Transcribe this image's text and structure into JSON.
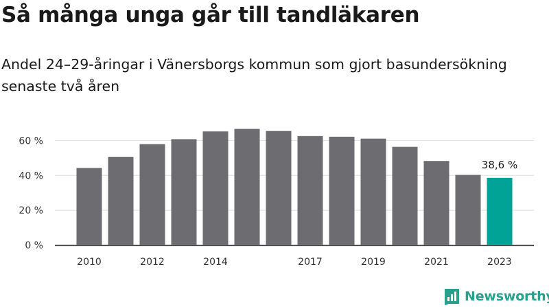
{
  "title": "Så många unga går till tandläkaren",
  "subtitle": "Andel 24–29-åringar i Vänersborgs kommun som gjort basundersökning senaste två åren",
  "brand": {
    "name": "Newsworthy",
    "color": "#27a08c",
    "icon": "bar-chart-logo-icon"
  },
  "colors": {
    "bar": "#6d6d71",
    "highlight": "#00a396",
    "grid": "#dddddd",
    "axis": "#333333",
    "text": "#333333"
  },
  "chart_data": {
    "type": "bar",
    "categories": [
      "2010",
      "2011",
      "2012",
      "2013",
      "2014",
      "2015",
      "2016",
      "2017",
      "2018",
      "2019",
      "2020",
      "2021",
      "2022",
      "2023"
    ],
    "values": [
      44.3,
      50.7,
      58.0,
      60.8,
      65.3,
      66.8,
      65.6,
      62.6,
      62.2,
      61.1,
      56.4,
      48.3,
      40.3,
      38.6
    ],
    "x_tick_labels": [
      "2010",
      "2012",
      "2014",
      "2017",
      "2019",
      "2021",
      "2023"
    ],
    "y_ticks": [
      "0 %",
      "20 %",
      "40 %",
      "60 %"
    ],
    "y_tick_values": [
      0,
      20,
      40,
      60
    ],
    "ylim": [
      0,
      70
    ],
    "highlight_index": 13,
    "data_label": "38,6 %",
    "grid": true,
    "xlabel": "",
    "ylabel": ""
  }
}
